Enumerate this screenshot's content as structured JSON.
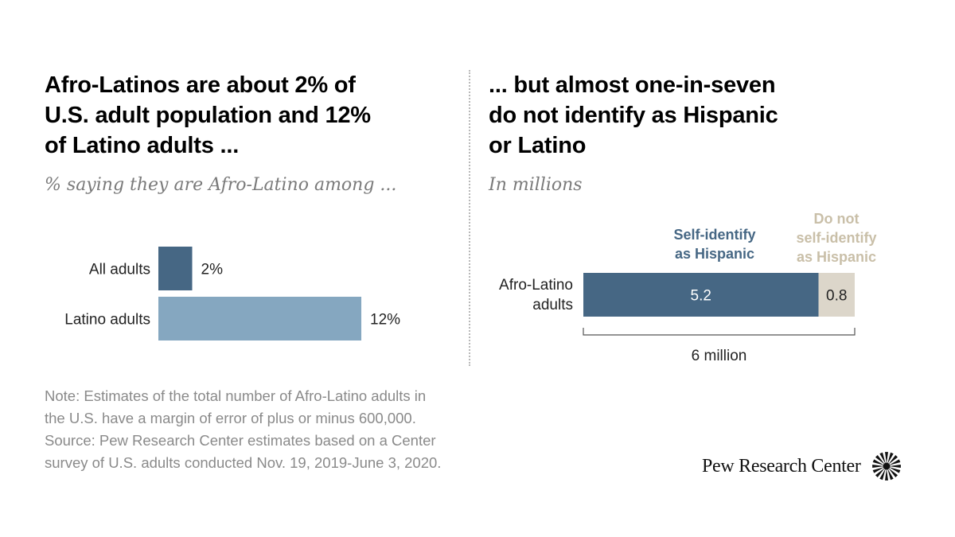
{
  "left_panel": {
    "title": "Afro-Latinos are about 2% of U.S. adult population and 12% of Latino adults ...",
    "title_lines": [
      "Afro-Latinos are about 2% of",
      "U.S. adult population and 12%",
      "of Latino adults ..."
    ],
    "subtitle": "% saying they are Afro-Latino among ..."
  },
  "right_panel": {
    "title": "... but almost one-in-seven do not identify as Hispanic or Latino",
    "title_lines": [
      "... but almost one-in-seven",
      "do not identify as Hispanic",
      "or Latino"
    ],
    "subtitle": "In millions"
  },
  "chart_data": [
    {
      "type": "bar",
      "orientation": "horizontal",
      "title": "Afro-Latinos are about 2% of U.S. adult population and 12% of Latino adults ...",
      "subtitle": "% saying they are Afro-Latino among ...",
      "categories": [
        "All adults",
        "Latino adults"
      ],
      "values": [
        2,
        12
      ],
      "value_labels": [
        "2%",
        "12%"
      ],
      "colors": [
        "#466784",
        "#85a7c0"
      ],
      "xlim": [
        0,
        12
      ],
      "grid": false
    },
    {
      "type": "bar",
      "orientation": "horizontal",
      "stacked": true,
      "title": "... but almost one-in-seven do not identify as Hispanic or Latino",
      "subtitle": "In millions",
      "categories": [
        "Afro-Latino adults"
      ],
      "category_lines": [
        "Afro-Latino",
        "adults"
      ],
      "series": [
        {
          "name": "Self-identify as Hispanic",
          "name_lines": [
            "Self-identify",
            "as Hispanic"
          ],
          "values": [
            5.2
          ],
          "value_labels": [
            "5.2"
          ],
          "color": "#466784",
          "label_color": "#ffffff"
        },
        {
          "name": "Do not self-identify as Hispanic",
          "name_lines": [
            "Do not",
            "self-identify",
            "as Hispanic"
          ],
          "values": [
            0.8
          ],
          "value_labels": [
            "0.8"
          ],
          "color": "#dcd6ca",
          "legend_color": "#c9bfa8",
          "label_color": "#222222"
        }
      ],
      "total": 6,
      "total_label": "6 million",
      "xlim": [
        0,
        6
      ],
      "legend": "top",
      "grid": false
    }
  ],
  "footer": {
    "note_lines": [
      "Note: Estimates of the total number of Afro-Latino adults in",
      "the U.S. have a margin of error of plus or minus 600,000.",
      "Source: Pew Research Center estimates based on a Center",
      "survey of U.S. adults conducted Nov. 19, 2019-June 3, 2020."
    ],
    "logo_text": "Pew Research Center",
    "logo_icon": "pew-sunburst-icon"
  }
}
